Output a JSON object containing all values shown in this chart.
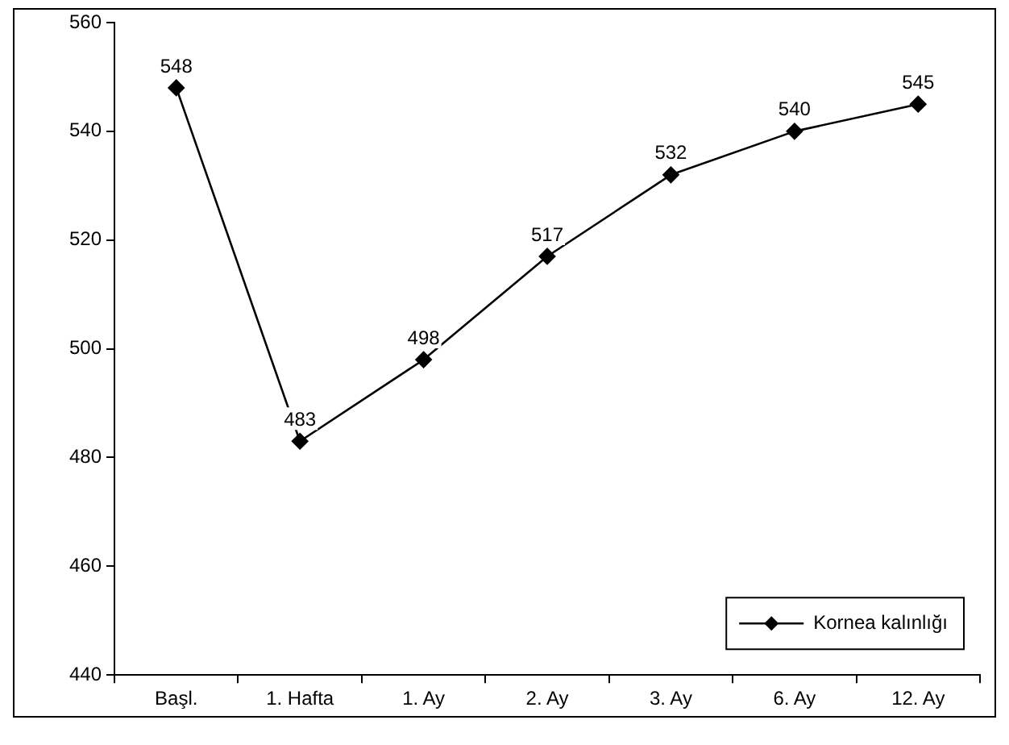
{
  "chart_data": {
    "type": "line",
    "categories": [
      "Başl.",
      "1. Hafta",
      "1. Ay",
      "2. Ay",
      "3. Ay",
      "6. Ay",
      "12. Ay"
    ],
    "series": [
      {
        "name": "Kornea kalınlığı",
        "color": "#000000",
        "values": [
          548,
          483,
          498,
          517,
          532,
          540,
          545
        ]
      }
    ],
    "ylim": [
      440,
      560
    ],
    "yticks": [
      440,
      460,
      480,
      500,
      520,
      540,
      560
    ],
    "data_labels": true,
    "legend": "bottom right",
    "marker": "diamond",
    "line_style": "solid"
  }
}
